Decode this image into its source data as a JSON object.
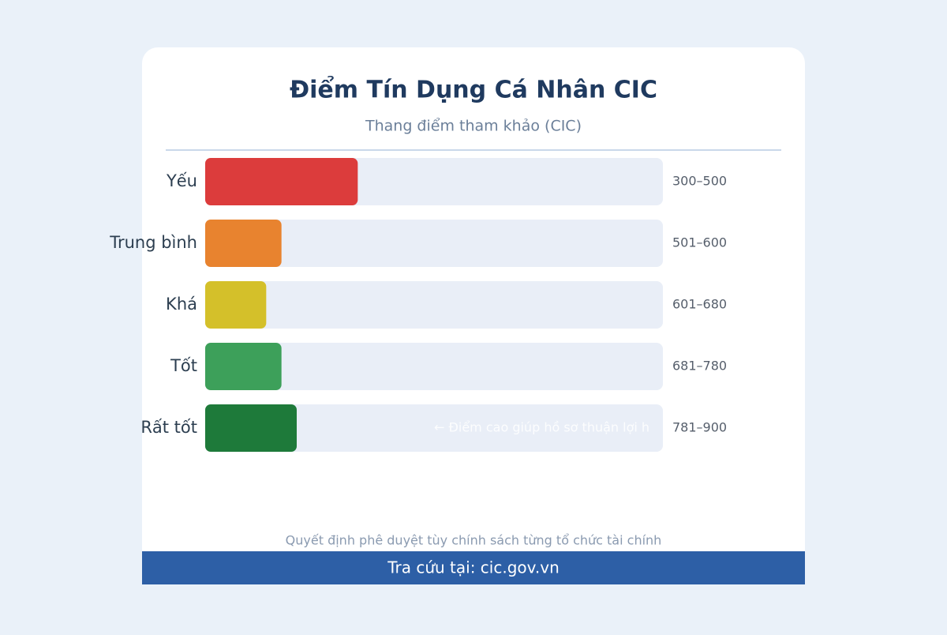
{
  "chart_data": {
    "type": "bar",
    "title": "Điểm Tín Dụng Cá Nhân CIC",
    "subtitle": "Thang điểm tham khảo (CIC)",
    "categories": [
      "Yếu",
      "Trung bình",
      "Khá",
      "Tốt",
      "Rất tốt"
    ],
    "values": [
      200,
      100,
      80,
      100,
      120
    ],
    "range_labels": [
      "300–500",
      "501–600",
      "601–680",
      "681–780",
      "781–900"
    ],
    "colors": [
      "#dc3c3c",
      "#e8832f",
      "#d4c02a",
      "#3da05a",
      "#1e7a3a"
    ],
    "xlim": [
      0,
      600
    ],
    "annotation": "← Điểm cao giúp hồ sơ thuận lợi h",
    "note": "Quyết định phê duyệt tùy chính sách từng tổ chức tài chính",
    "footer": "Tra cứu tại: cic.gov.vn"
  }
}
